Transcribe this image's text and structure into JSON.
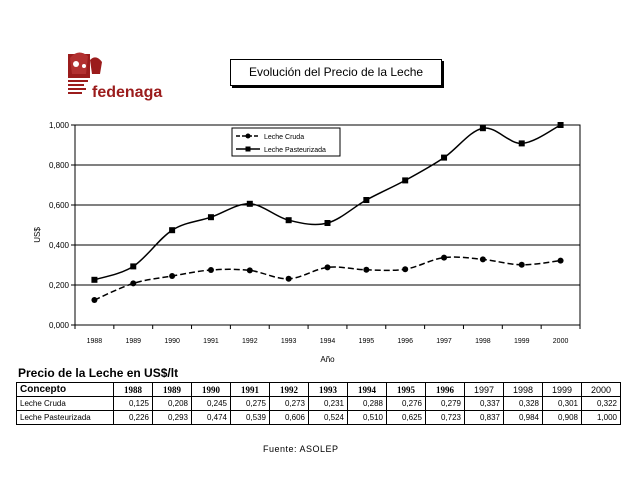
{
  "logo": {
    "name": "fedenaga"
  },
  "table": {
    "title": "Precio de la Leche en US$/lt",
    "header_concept": "Concepto",
    "years": [
      "1988",
      "1989",
      "1990",
      "1991",
      "1992",
      "1993",
      "1994",
      "1995",
      "1996",
      "1997",
      "1998",
      "1999",
      "2000"
    ],
    "rows": [
      {
        "label": "Leche Cruda",
        "values": [
          "0,125",
          "0,208",
          "0,245",
          "0,275",
          "0,273",
          "0,231",
          "0,288",
          "0,276",
          "0,279",
          "0,337",
          "0,328",
          "0,301",
          "0,322"
        ]
      },
      {
        "label": "Leche Pasteurizada",
        "values": [
          "0,226",
          "0,293",
          "0,474",
          "0,539",
          "0,606",
          "0,524",
          "0,510",
          "0,625",
          "0,723",
          "0,837",
          "0,984",
          "0,908",
          "1,000"
        ]
      }
    ]
  },
  "source": "Fuente: ASOLEP",
  "chart_data": {
    "type": "line",
    "title": "Evolución del Precio de la Leche",
    "xlabel": "Año",
    "ylabel": "US$",
    "categories": [
      "1988",
      "1989",
      "1990",
      "1991",
      "1992",
      "1993",
      "1994",
      "1995",
      "1996",
      "1997",
      "1998",
      "1999",
      "2000"
    ],
    "y_ticks": [
      "0,000",
      "0,200",
      "0,400",
      "0,600",
      "0,800",
      "1,000"
    ],
    "ylim": [
      0,
      1.0
    ],
    "grid": true,
    "legend_position": "top-center",
    "series": [
      {
        "name": "Leche Cruda",
        "marker": "circle",
        "style": "dashed",
        "values": [
          0.125,
          0.208,
          0.245,
          0.275,
          0.273,
          0.231,
          0.288,
          0.276,
          0.279,
          0.337,
          0.328,
          0.301,
          0.322
        ]
      },
      {
        "name": "Leche Pasteurizada",
        "marker": "square",
        "style": "solid",
        "values": [
          0.226,
          0.293,
          0.474,
          0.539,
          0.606,
          0.524,
          0.51,
          0.625,
          0.723,
          0.837,
          0.984,
          0.908,
          1.0
        ]
      }
    ]
  }
}
